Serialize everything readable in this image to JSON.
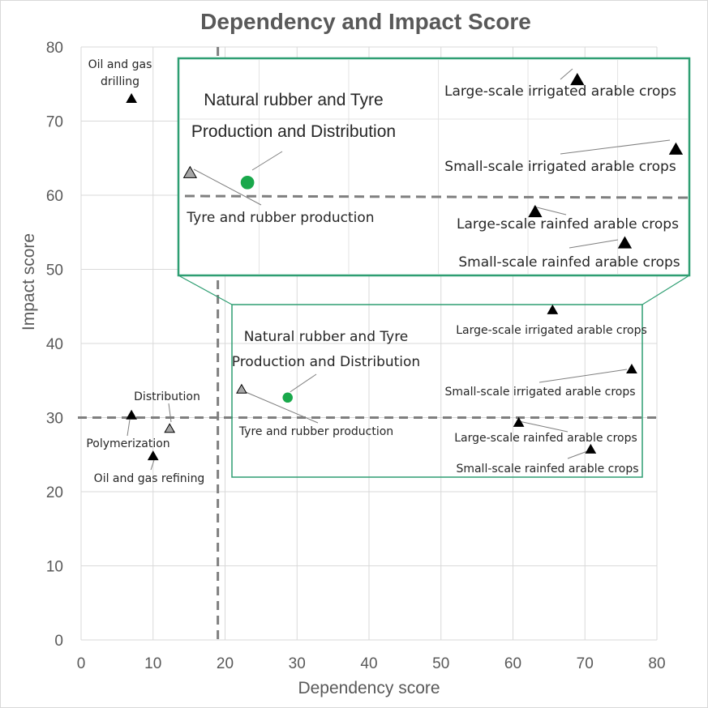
{
  "chart_data": {
    "type": "scatter",
    "title": "Dependency and Impact Score",
    "xlabel": "Dependency score",
    "ylabel": "Impact score",
    "xlim": [
      0,
      80
    ],
    "ylim": [
      0,
      80
    ],
    "xticks": [
      "0",
      "10",
      "20",
      "30",
      "40",
      "50",
      "60",
      "70",
      "80"
    ],
    "yticks": [
      "0",
      "10",
      "20",
      "30",
      "40",
      "50",
      "60",
      "70",
      "80"
    ],
    "grid": true,
    "threshold_lines": {
      "x": 19,
      "y": 30
    },
    "points": [
      {
        "label": "Oil and gas drilling",
        "x": 7,
        "y": 73,
        "marker": "triangle-black"
      },
      {
        "label": "Distribution",
        "x": 12.3,
        "y": 28.5,
        "marker": "triangle-grey"
      },
      {
        "label": "Polymerization",
        "x": 7,
        "y": 30.3,
        "marker": "triangle-black"
      },
      {
        "label": "Oil and gas refining",
        "x": 10,
        "y": 24.8,
        "marker": "triangle-black"
      },
      {
        "label": "Tyre and rubber production",
        "x": 22.3,
        "y": 33.8,
        "marker": "triangle-grey"
      },
      {
        "label": "Natural rubber and Tyre Production and Distribution",
        "x": 28.7,
        "y": 32.7,
        "marker": "circle-green"
      },
      {
        "label": "Large-scale irrigated arable crops",
        "x": 65.5,
        "y": 44.5,
        "marker": "triangle-black"
      },
      {
        "label": "Small-scale irrigated arable crops",
        "x": 76.5,
        "y": 36.5,
        "marker": "triangle-black"
      },
      {
        "label": "Large-scale rainfed arable crops",
        "x": 60.8,
        "y": 29.3,
        "marker": "triangle-black"
      },
      {
        "label": "Small-scale rainfed arable crops",
        "x": 70.8,
        "y": 25.7,
        "marker": "triangle-black"
      }
    ],
    "zoom_inset": {
      "x_range": [
        21,
        78
      ],
      "y_range": [
        22,
        47
      ]
    }
  },
  "labels": {
    "oil_gas_drilling_1": "Oil and gas",
    "oil_gas_drilling_2": "drilling",
    "distribution": "Distribution",
    "polymerization": "Polymerization",
    "oil_gas_refining": "Oil and gas refining",
    "natural_rubber_1": "Natural rubber and Tyre",
    "natural_rubber_2": "Production and Distribution",
    "tyre_rubber": "Tyre and rubber production",
    "large_irrigated": "Large-scale irrigated arable crops",
    "small_irrigated": "Small-scale irrigated arable crops",
    "large_rainfed": "Large-scale rainfed arable crops",
    "small_rainfed": "Small-scale rainfed arable crops"
  },
  "colors": {
    "accent_green": "#2e9e72",
    "marker_green": "#19a84b",
    "grid": "#d9d9d9",
    "threshold": "#7f7f7f"
  }
}
